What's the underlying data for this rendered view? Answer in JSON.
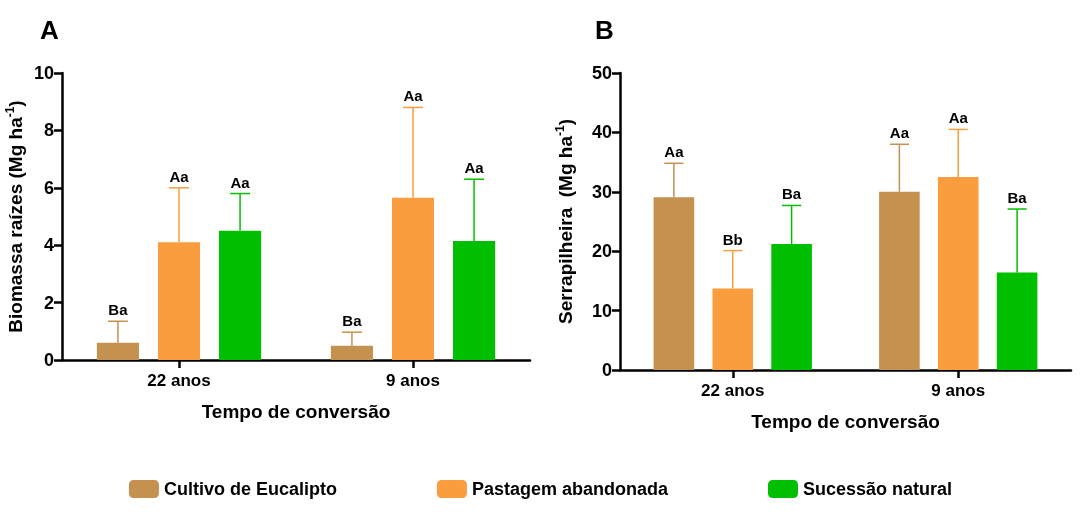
{
  "chart_data": [
    {
      "type": "bar",
      "title": "A",
      "xlabel": "Tempo de conversão",
      "ylabel": "Biomassa raízes (Mg ha$^{-1}$)",
      "categories": [
        "22 anos",
        "9 anos"
      ],
      "ylim": [
        0,
        10
      ],
      "yticks": [
        0,
        2,
        4,
        6,
        8,
        10
      ],
      "legend": "bottom",
      "series": [
        {
          "name": "Cultivo de Eucalipto",
          "color": "#c4914f",
          "values": [
            0.6,
            0.5
          ],
          "errors": [
            [
              0.6,
              1.35
            ],
            [
              0.5,
              0.97
            ]
          ]
        },
        {
          "name": "Pastagem abandonada",
          "color": "#f99d3e",
          "values": [
            4.1,
            5.65
          ],
          "errors": [
            [
              4.1,
              6.0
            ],
            [
              5.65,
              8.8
            ]
          ]
        },
        {
          "name": "Sucessão natural",
          "color": "#00bf00",
          "values": [
            4.5,
            4.15
          ],
          "errors": [
            [
              4.5,
              5.8
            ],
            [
              4.15,
              6.3
            ]
          ]
        }
      ],
      "annotations": [
        "Ba",
        "Ba",
        "Aa",
        "Aa",
        "Aa",
        "Aa"
      ]
    },
    {
      "type": "bar",
      "title": "B",
      "xlabel": "Tempo de conversão",
      "ylabel": "Serrapilheira  (Mg ha$^{-1}$)",
      "categories": [
        "22 anos",
        "9 anos"
      ],
      "ylim": [
        0,
        50
      ],
      "yticks": [
        0,
        10,
        20,
        30,
        40,
        50
      ],
      "series": [
        {
          "color": "#c4914f",
          "values": [
            29.1,
            30.0
          ],
          "errors": [
            [
              29.1,
              34.8
            ],
            [
              30.0,
              38.0
            ]
          ]
        },
        {
          "color": "#f99d3e",
          "values": [
            13.7,
            32.5
          ],
          "errors": [
            [
              13.7,
              20.1
            ],
            [
              32.5,
              40.5
            ]
          ]
        },
        {
          "color": "#00bf00",
          "values": [
            21.2,
            16.4
          ],
          "errors": [
            [
              21.2,
              27.7
            ],
            [
              16.4,
              27.1
            ]
          ]
        }
      ],
      "annotations": [
        "Aa",
        "Aa",
        "Bb",
        "Aa",
        "Ba",
        "Ba"
      ]
    }
  ]
}
